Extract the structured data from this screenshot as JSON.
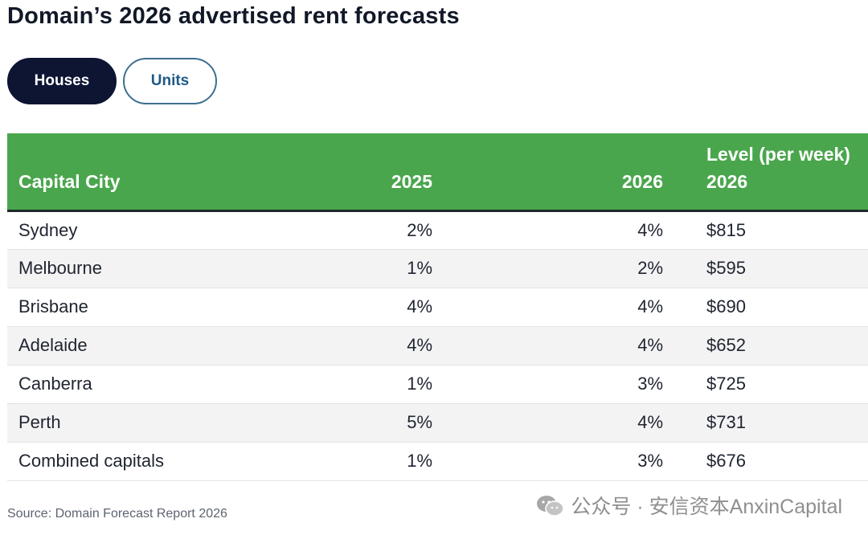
{
  "title": "Domain’s 2026 advertised rent forecasts",
  "tabs": [
    {
      "label": "Houses",
      "active": true
    },
    {
      "label": "Units",
      "active": false
    }
  ],
  "table": {
    "headers": {
      "city": "Capital City",
      "y2025": "2025",
      "y2026": "2026",
      "level_line1": "Level (per week)",
      "level_line2": "2026"
    },
    "rows": [
      {
        "city": "Sydney",
        "y2025": "2%",
        "y2026": "4%",
        "level": "$815"
      },
      {
        "city": "Melbourne",
        "y2025": "1%",
        "y2026": "2%",
        "level": "$595"
      },
      {
        "city": "Brisbane",
        "y2025": "4%",
        "y2026": "4%",
        "level": "$690"
      },
      {
        "city": "Adelaide",
        "y2025": "4%",
        "y2026": "4%",
        "level": "$652"
      },
      {
        "city": "Canberra",
        "y2025": "1%",
        "y2026": "3%",
        "level": "$725"
      },
      {
        "city": "Perth",
        "y2025": "5%",
        "y2026": "4%",
        "level": "$731"
      },
      {
        "city": "Combined capitals",
        "y2025": "1%",
        "y2026": "3%",
        "level": "$676"
      }
    ]
  },
  "source": "Source: Domain Forecast Report 2026",
  "watermark": {
    "text": "公众号 · 安信资本AnxinCapital",
    "icon": "wechat-icon"
  },
  "colors": {
    "header_green": "#4aa64d",
    "active_tab": "#0d1533",
    "inactive_tab_border": "#3d6f8f",
    "inactive_tab_text": "#1f5a86"
  }
}
